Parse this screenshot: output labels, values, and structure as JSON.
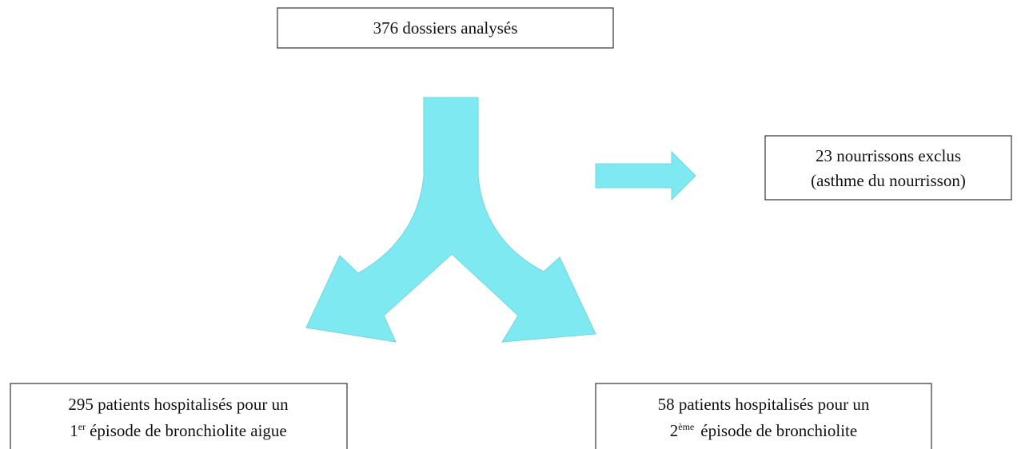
{
  "nodes": [
    {
      "lines": [
        "376 dossiers analysés"
      ]
    },
    {
      "lines": [
        "23 nourrissons exclus",
        "(asthme du nourrisson)"
      ]
    },
    {
      "lines": [
        "295 patients hospitalisés pour un"
      ],
      "ordinal": "1",
      "ordinal_suffix": "er",
      "rest": "épisode de bronchiolite aigue"
    },
    {
      "lines": [
        "58 patients hospitalisés pour un"
      ],
      "ordinal": "2",
      "ordinal_suffix": "ème",
      "rest": "épisode de bronchiolite"
    }
  ]
}
